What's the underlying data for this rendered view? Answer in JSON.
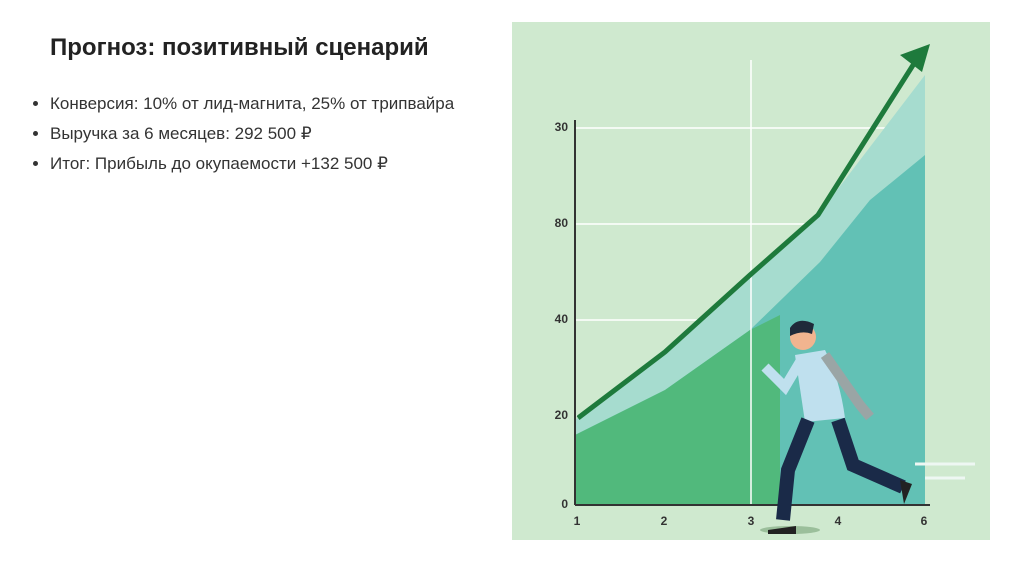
{
  "slide": {
    "title": "Прогноз: позитивный сценарий",
    "bullets": [
      "Конверсия: 10% от лид-магнита, 25% от трипвайра",
      "Выручка за 6 месяцев: 292 500 ₽",
      "Итог: Прибыль до окупаемости +132 500 ₽"
    ]
  },
  "illustration": {
    "y_labels": [
      "30",
      "80",
      "40",
      "20",
      "0"
    ],
    "x_labels": [
      "1",
      "2",
      "3",
      "4",
      "6"
    ]
  }
}
